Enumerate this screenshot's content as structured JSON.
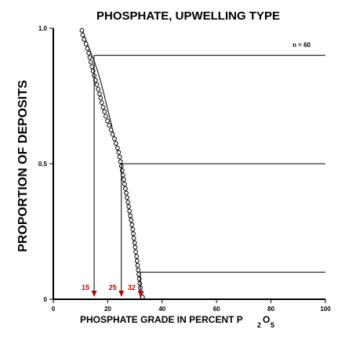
{
  "chart_data": {
    "type": "scatter",
    "title": "PHOSPHATE, UPWELLING TYPE",
    "ylabel": "PROPORTION OF DEPOSITS",
    "xlabel": {
      "main": "PHOSPHATE GRADE IN PERCENT P",
      "sub1": "2",
      "mid": "O",
      "sub2": "5"
    },
    "xlim": [
      0,
      100
    ],
    "ylim": [
      0,
      1
    ],
    "xticks": [
      "0",
      "20",
      "40",
      "60",
      "80",
      "100"
    ],
    "yticks": [
      {
        "value": 0,
        "label": "0"
      },
      {
        "value": 0.5,
        "label": "0.5"
      },
      {
        "value": 1.0,
        "label": "1.0"
      }
    ],
    "annotation": "n = 60",
    "grid": false,
    "points": {
      "x": [
        10.5,
        10.8,
        11.3,
        12.0,
        12.5,
        13.0,
        13.4,
        13.8,
        14.2,
        14.6,
        15.0,
        15.5,
        16.0,
        16.5,
        17.0,
        17.4,
        17.8,
        18.3,
        18.8,
        19.3,
        19.9,
        20.5,
        21.2,
        21.8,
        22.5,
        23.0,
        23.6,
        24.0,
        24.4,
        24.7,
        25.0,
        25.3,
        25.6,
        25.9,
        26.2,
        26.5,
        26.8,
        27.1,
        27.4,
        27.7,
        28.0,
        28.3,
        28.6,
        28.9,
        29.2,
        29.4,
        29.6,
        29.9,
        30.1,
        30.3,
        30.6,
        30.8,
        31.0,
        31.2,
        31.4,
        31.6,
        31.8,
        32.0,
        32.3,
        32.8
      ],
      "y": [
        0.992,
        0.975,
        0.958,
        0.942,
        0.925,
        0.908,
        0.892,
        0.875,
        0.858,
        0.842,
        0.825,
        0.808,
        0.792,
        0.775,
        0.758,
        0.742,
        0.725,
        0.708,
        0.692,
        0.675,
        0.658,
        0.642,
        0.625,
        0.608,
        0.592,
        0.575,
        0.558,
        0.542,
        0.525,
        0.508,
        0.492,
        0.475,
        0.458,
        0.442,
        0.425,
        0.408,
        0.392,
        0.375,
        0.358,
        0.342,
        0.325,
        0.308,
        0.292,
        0.275,
        0.258,
        0.242,
        0.225,
        0.208,
        0.192,
        0.175,
        0.158,
        0.142,
        0.125,
        0.108,
        0.092,
        0.075,
        0.058,
        0.042,
        0.025,
        0.008
      ]
    },
    "fitted_curve": {
      "x": [
        10.5,
        11.5,
        12.8,
        14.0,
        15.0,
        16.2,
        17.5,
        18.8,
        20.0,
        21.2,
        22.4,
        23.5,
        24.4,
        25.0,
        25.8,
        26.6,
        27.4,
        28.2,
        29.0,
        29.7,
        30.4,
        31.0,
        31.5,
        31.9,
        32.1
      ],
      "y": [
        1.0,
        0.97,
        0.935,
        0.905,
        0.88,
        0.845,
        0.8,
        0.75,
        0.7,
        0.65,
        0.6,
        0.55,
        0.52,
        0.5,
        0.45,
        0.4,
        0.35,
        0.3,
        0.25,
        0.2,
        0.15,
        0.1,
        0.06,
        0.03,
        0.0
      ]
    },
    "percentile_lines": [
      {
        "y": 0.9,
        "x": 15,
        "label": "15"
      },
      {
        "y": 0.5,
        "x": 25,
        "label": "25"
      },
      {
        "y": 0.1,
        "x": 32,
        "label": "32"
      }
    ],
    "colors": {
      "axis": "#000000",
      "points": "#000000",
      "arrows": "#c00000",
      "arrow_labels": "#c00000"
    }
  }
}
